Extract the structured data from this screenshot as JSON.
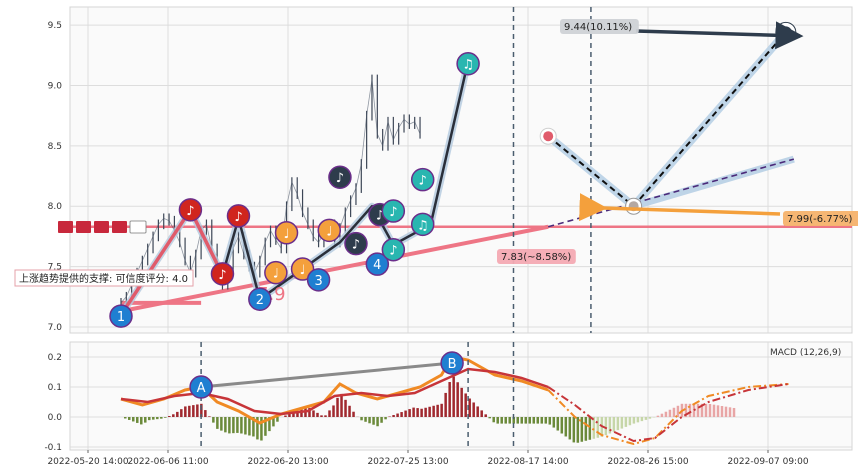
{
  "chart_data": {
    "type": "line",
    "x_ticks": [
      "2022-05-20 14:00",
      "2022-06-06 11:00",
      "2022-06-20 13:00",
      "2022-07-25 13:00",
      "2022-08-17 14:00",
      "2022-08-26 15:00",
      "2022-09-07 09:00"
    ],
    "price_panel": {
      "ylim": [
        6.95,
        9.65
      ],
      "yticks": [
        "7.0",
        "7.5",
        "8.0",
        "8.5",
        "9.0",
        "9.5"
      ],
      "price_series": [
        [
          0,
          7.2
        ],
        [
          2,
          7.25
        ],
        [
          4,
          7.35
        ],
        [
          6,
          7.45
        ],
        [
          8,
          7.55
        ],
        [
          10,
          7.65
        ],
        [
          12,
          7.75
        ],
        [
          14,
          7.85
        ],
        [
          16,
          7.9
        ],
        [
          18,
          7.88
        ],
        [
          20,
          7.8
        ],
        [
          22,
          7.7
        ],
        [
          24,
          7.55
        ],
        [
          26,
          7.45
        ],
        [
          28,
          7.6
        ],
        [
          30,
          7.8
        ],
        [
          32,
          7.85
        ],
        [
          34,
          7.65
        ],
        [
          36,
          7.45
        ],
        [
          38,
          7.35
        ],
        [
          40,
          7.5
        ],
        [
          42,
          7.65
        ],
        [
          44,
          7.75
        ],
        [
          46,
          7.6
        ],
        [
          48,
          7.5
        ],
        [
          50,
          7.45
        ],
        [
          52,
          7.55
        ],
        [
          54,
          7.7
        ],
        [
          56,
          7.8
        ],
        [
          58,
          7.72
        ],
        [
          60,
          7.65
        ],
        [
          62,
          8.0
        ],
        [
          64,
          8.2
        ],
        [
          66,
          8.1
        ],
        [
          68,
          7.95
        ],
        [
          70,
          7.85
        ],
        [
          72,
          7.75
        ],
        [
          74,
          7.7
        ],
        [
          76,
          7.78
        ],
        [
          78,
          7.85
        ],
        [
          80,
          7.7
        ],
        [
          82,
          7.82
        ],
        [
          84,
          7.95
        ],
        [
          86,
          8.05
        ],
        [
          88,
          8.15
        ],
        [
          90,
          8.35
        ],
        [
          92,
          8.75
        ],
        [
          94,
          9.05
        ],
        [
          96,
          8.6
        ],
        [
          98,
          8.5
        ],
        [
          100,
          8.7
        ],
        [
          102,
          8.55
        ],
        [
          104,
          8.65
        ],
        [
          106,
          8.72
        ],
        [
          108,
          8.68
        ],
        [
          110,
          8.7
        ],
        [
          112,
          8.6
        ]
      ],
      "zigzag": [
        [
          0,
          7.1
        ],
        [
          26,
          7.97
        ],
        [
          38,
          7.43
        ],
        [
          44,
          7.9
        ],
        [
          52,
          7.23
        ],
        [
          82,
          7.7
        ],
        [
          94,
          8.0
        ],
        [
          102,
          7.68
        ],
        [
          116,
          7.85
        ],
        [
          130,
          9.2
        ]
      ],
      "circle_markers": [
        {
          "label": "1",
          "x": 0,
          "y": 7.09,
          "color": "#1f7fd1"
        },
        {
          "label": "♪",
          "x": 26,
          "y": 7.97,
          "color": "#d0251e"
        },
        {
          "label": "♪",
          "x": 38,
          "y": 7.44,
          "color": "#d0251e"
        },
        {
          "label": "♪",
          "x": 44,
          "y": 7.92,
          "color": "#d0251e"
        },
        {
          "label": "2",
          "x": 52,
          "y": 7.23,
          "color": "#1f7fd1"
        },
        {
          "label": "♩",
          "x": 58,
          "y": 7.45,
          "color": "#f4a03c"
        },
        {
          "label": "♩",
          "x": 62,
          "y": 7.78,
          "color": "#f4a03c"
        },
        {
          "label": "♩",
          "x": 68,
          "y": 7.48,
          "color": "#f4a03c"
        },
        {
          "label": "3",
          "x": 74,
          "y": 7.39,
          "color": "#1f7fd1"
        },
        {
          "label": "♩",
          "x": 78,
          "y": 7.8,
          "color": "#f4a03c"
        },
        {
          "label": "♪",
          "x": 82,
          "y": 8.24,
          "color": "#2e3c4c"
        },
        {
          "label": "♪",
          "x": 88,
          "y": 7.69,
          "color": "#2e3c4c"
        },
        {
          "label": "4",
          "x": 96,
          "y": 7.52,
          "color": "#1f7fd1"
        },
        {
          "label": "♪",
          "x": 97,
          "y": 7.93,
          "color": "#2e3c4c"
        },
        {
          "label": "♪",
          "x": 102,
          "y": 7.64,
          "color": "#29b6b0"
        },
        {
          "label": "♪",
          "x": 102,
          "y": 7.96,
          "color": "#29b6b0"
        },
        {
          "label": "♫",
          "x": 113,
          "y": 7.85,
          "color": "#29b6b0"
        },
        {
          "label": "♪",
          "x": 113,
          "y": 8.22,
          "color": "#29b6b0"
        },
        {
          "label": "♫",
          "x": 130,
          "y": 9.18,
          "color": "#29b6b0"
        }
      ],
      "support_level": 7.83,
      "support_trendline": [
        [
          0,
          7.13
        ],
        [
          160,
          7.83
        ]
      ],
      "target_projection": [
        [
          160,
          8.58
        ],
        [
          192,
          8.0
        ],
        [
          249,
          9.44
        ]
      ],
      "secondary_projection": [
        [
          192,
          8.0
        ],
        [
          252,
          8.39
        ]
      ],
      "pink_support_line": [
        [
          0,
          7.2
        ],
        [
          30,
          7.2
        ]
      ],
      "label_value": "7.9",
      "labels": {
        "target": "9.44(10.11%)",
        "stop": "7.99(-6.77%)",
        "support": "7.83(~8.58%)",
        "trend_support": "上涨趋势提供的支撑: 可信度评分: 4.0"
      }
    },
    "macd_panel": {
      "label": "MACD (12,26,9)",
      "ylim": [
        -0.11,
        0.25
      ],
      "yticks": [
        "0.2",
        "0.1",
        "0.0",
        "-0.1"
      ],
      "dif": [
        [
          0,
          0.06
        ],
        [
          8,
          0.04
        ],
        [
          16,
          0.06
        ],
        [
          24,
          0.09
        ],
        [
          30,
          0.1
        ],
        [
          36,
          0.05
        ],
        [
          44,
          0.02
        ],
        [
          52,
          -0.02
        ],
        [
          60,
          0.01
        ],
        [
          68,
          0.03
        ],
        [
          76,
          0.05
        ],
        [
          82,
          0.11
        ],
        [
          88,
          0.08
        ],
        [
          96,
          0.06
        ],
        [
          104,
          0.08
        ],
        [
          112,
          0.1
        ],
        [
          120,
          0.14
        ],
        [
          124,
          0.2
        ],
        [
          130,
          0.19
        ],
        [
          140,
          0.14
        ],
        [
          150,
          0.12
        ],
        [
          160,
          0.09
        ],
        [
          170,
          0.0
        ],
        [
          180,
          -0.06
        ],
        [
          192,
          -0.09
        ],
        [
          200,
          -0.07
        ],
        [
          210,
          0.02
        ],
        [
          220,
          0.07
        ],
        [
          235,
          0.1
        ],
        [
          250,
          0.11
        ]
      ],
      "dea": [
        [
          0,
          0.06
        ],
        [
          10,
          0.05
        ],
        [
          20,
          0.07
        ],
        [
          30,
          0.08
        ],
        [
          40,
          0.06
        ],
        [
          50,
          0.02
        ],
        [
          60,
          0.01
        ],
        [
          70,
          0.02
        ],
        [
          80,
          0.07
        ],
        [
          90,
          0.08
        ],
        [
          100,
          0.07
        ],
        [
          110,
          0.08
        ],
        [
          120,
          0.12
        ],
        [
          130,
          0.16
        ],
        [
          140,
          0.15
        ],
        [
          150,
          0.13
        ],
        [
          160,
          0.1
        ],
        [
          170,
          0.04
        ],
        [
          180,
          -0.03
        ],
        [
          192,
          -0.08
        ],
        [
          200,
          -0.07
        ],
        [
          210,
          0.0
        ],
        [
          220,
          0.05
        ],
        [
          235,
          0.09
        ],
        [
          250,
          0.11
        ]
      ],
      "circle_markers": [
        {
          "label": "A",
          "x": 30,
          "y": 0.1,
          "color": "#1f7fd1"
        },
        {
          "label": "B",
          "x": 124,
          "y": 0.18,
          "color": "#1f7fd1"
        }
      ]
    }
  }
}
